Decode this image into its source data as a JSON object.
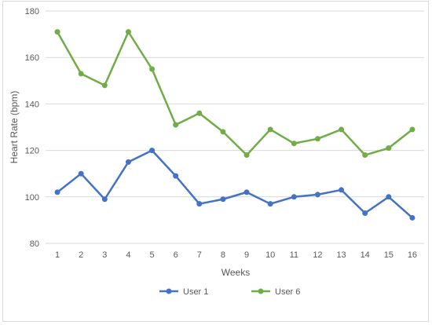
{
  "chart_data": {
    "type": "line",
    "title": "",
    "xlabel": "Weeks",
    "ylabel": "Heart Rate (bpm)",
    "categories": [
      "1",
      "2",
      "3",
      "4",
      "5",
      "6",
      "7",
      "8",
      "9",
      "10",
      "11",
      "12",
      "13",
      "14",
      "15",
      "16"
    ],
    "y_ticks": [
      "80",
      "100",
      "120",
      "140",
      "160",
      "180"
    ],
    "ylim": [
      80,
      180
    ],
    "grid": "horizontal",
    "legend_position": "bottom",
    "series": [
      {
        "name": "User 1",
        "color": "#4472c4",
        "values": [
          102,
          110,
          99,
          115,
          120,
          109,
          97,
          99,
          102,
          97,
          100,
          101,
          103,
          93,
          100,
          91
        ]
      },
      {
        "name": "User 6",
        "color": "#70ad47",
        "values": [
          171,
          153,
          148,
          171,
          155,
          131,
          136,
          128,
          118,
          129,
          123,
          125,
          129,
          118,
          121,
          129
        ]
      }
    ]
  }
}
